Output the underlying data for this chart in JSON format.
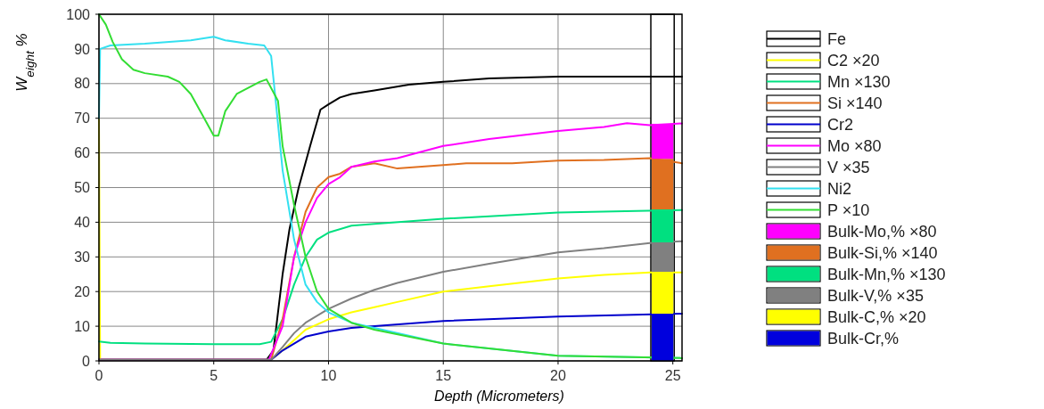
{
  "chart_data": {
    "type": "line",
    "xlabel": "Depth (Micrometers)",
    "ylabel": "W$_{eight}$ %",
    "xlim": [
      0,
      25.4
    ],
    "ylim": [
      0,
      100
    ],
    "xticks": [
      0,
      5,
      10,
      15,
      20,
      25
    ],
    "yticks": [
      0,
      10,
      20,
      30,
      40,
      50,
      60,
      70,
      80,
      90,
      100
    ],
    "grid": true,
    "legend": "right",
    "stacked": true,
    "line_style": "solid",
    "series": [
      {
        "name": "Fe",
        "color": "#000000",
        "x": [
          0,
          7.3,
          7.6,
          8,
          8.3,
          8.7,
          9.2,
          9.65,
          10,
          10.5,
          11,
          12,
          13.5,
          15,
          17,
          20,
          25.4
        ],
        "values": [
          0.3,
          0.3,
          3,
          25,
          38,
          50,
          62,
          72.5,
          74,
          76,
          77,
          78,
          79.7,
          80.5,
          81.5,
          82,
          82
        ]
      },
      {
        "name": "C2 ×20",
        "color": "#ffff00",
        "x": [
          0,
          0.05,
          7.5,
          8,
          8.5,
          9,
          10,
          11,
          12,
          13,
          15,
          17,
          20,
          22,
          24,
          25.4
        ],
        "values": [
          70,
          0.3,
          0.3,
          3,
          6,
          9,
          12,
          14,
          15.5,
          17,
          20,
          21.5,
          23.8,
          24.8,
          25.5,
          25.5
        ]
      },
      {
        "name": "Mn ×130",
        "color": "#00e080",
        "x": [
          0,
          0.5,
          2,
          5,
          7,
          7.5,
          8,
          8.5,
          9,
          9.5,
          10,
          11,
          12,
          15,
          20,
          25.4
        ],
        "values": [
          5.6,
          5.2,
          5,
          4.8,
          4.8,
          5.5,
          12,
          22,
          30,
          35,
          37,
          39,
          39.5,
          41,
          42.8,
          43.5
        ]
      },
      {
        "name": "Si ×140",
        "color": "#e07020",
        "x": [
          0,
          7.5,
          8,
          8.5,
          9,
          9.5,
          10,
          10.5,
          11,
          12,
          13,
          15,
          16,
          18,
          20,
          22,
          24,
          25.4
        ],
        "values": [
          0.3,
          0.3,
          12,
          30,
          43,
          50,
          53,
          54,
          56,
          57,
          55.5,
          56.5,
          57,
          57,
          57.8,
          58,
          58.5,
          57
        ]
      },
      {
        "name": "Cr2",
        "color": "#0000cc",
        "x": [
          0,
          7.5,
          8,
          8.5,
          9,
          10,
          11,
          12,
          15,
          20,
          25.4
        ],
        "values": [
          0.3,
          0.3,
          3,
          5,
          7,
          8.5,
          9.5,
          10,
          11.5,
          12.8,
          13.6
        ]
      },
      {
        "name": "Mo ×80",
        "color": "#ff00ff",
        "x": [
          0,
          7.4,
          8,
          8.5,
          9,
          9.5,
          10,
          10.5,
          11,
          12,
          13,
          15,
          17,
          20,
          22,
          23,
          24,
          25.4
        ],
        "values": [
          0.3,
          0.3,
          10,
          30,
          40,
          47,
          51,
          53,
          56,
          57.5,
          58.5,
          62,
          64,
          66.3,
          67.5,
          68.6,
          68,
          68.5
        ]
      },
      {
        "name": "V ×35",
        "color": "#808080",
        "x": [
          0,
          7.5,
          8,
          8.5,
          9,
          10,
          11,
          12,
          13,
          15,
          17,
          20,
          22,
          24,
          25.4
        ],
        "values": [
          0.3,
          0.3,
          4,
          8,
          11,
          15,
          18,
          20.5,
          22.5,
          25.7,
          28,
          31.3,
          32.5,
          34,
          34.5
        ]
      },
      {
        "name": "Ni2",
        "color": "#33e0f0",
        "x": [
          0,
          0.05,
          0.5,
          2,
          4,
          5,
          5.5,
          6.5,
          7.2,
          7.5,
          7.7,
          8,
          8.5,
          9,
          9.5,
          10,
          11,
          12,
          15,
          20,
          25.4
        ],
        "values": [
          70,
          90,
          91,
          91.5,
          92.5,
          93.5,
          92.5,
          91.5,
          91,
          88,
          75,
          55,
          35,
          22,
          17,
          14,
          11,
          9.5,
          5,
          1.5,
          0.8
        ]
      },
      {
        "name": "P ×10",
        "color": "#33dd33",
        "x": [
          0,
          0.3,
          0.6,
          1,
          1.5,
          2,
          3,
          3.5,
          4,
          4.5,
          5,
          5.2,
          5.5,
          6,
          7,
          7.3,
          7.8,
          8,
          8.5,
          9,
          9.5,
          10,
          11,
          12,
          15,
          20,
          25.4
        ],
        "values": [
          100,
          97,
          92,
          87,
          84,
          83,
          82,
          80.5,
          77,
          71,
          65,
          65,
          72,
          77,
          80.5,
          81.2,
          75,
          62,
          45,
          30,
          20,
          15,
          11,
          9,
          5,
          1.5,
          0.8
        ]
      },
      {
        "name": "Bulk-Cr,%",
        "type": "bar",
        "color": "#0000dd",
        "x": [
          24.55
        ],
        "values": [
          13.6
        ]
      },
      {
        "name": "Bulk-C,% ×20",
        "type": "bar",
        "color": "#ffff00",
        "x": [
          24.55
        ],
        "values": [
          12.1
        ]
      },
      {
        "name": "Bulk-V,% ×35",
        "type": "bar",
        "color": "#808080",
        "x": [
          24.55
        ],
        "values": [
          8.5
        ]
      },
      {
        "name": "Bulk-Mn,% ×130",
        "type": "bar",
        "color": "#00e080",
        "x": [
          24.55
        ],
        "values": [
          9.5
        ]
      },
      {
        "name": "Bulk-Si,% ×140",
        "type": "bar",
        "color": "#e07020",
        "x": [
          24.55
        ],
        "values": [
          14.6
        ]
      },
      {
        "name": "Bulk-Mo,% ×80",
        "type": "bar",
        "color": "#ff00ff",
        "x": [
          24.55
        ],
        "values": [
          10.1
        ]
      }
    ]
  }
}
